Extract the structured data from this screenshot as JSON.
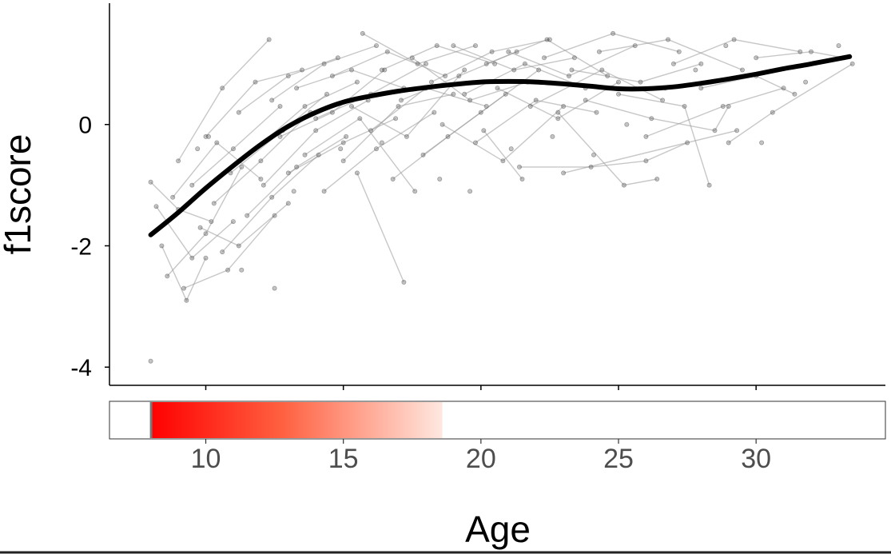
{
  "chart_data": {
    "type": "scatter",
    "xlabel": "Age",
    "ylabel": "f1score",
    "xlim": [
      6.5,
      34.7
    ],
    "ylim": [
      -4.3,
      2.0
    ],
    "x_ticks": [
      10,
      15,
      20,
      25,
      30
    ],
    "x_tick_labels": [
      "10",
      "15",
      "20",
      "25",
      "30"
    ],
    "y_ticks": [
      0,
      -2,
      -4
    ],
    "y_tick_labels": [
      "0",
      "-2",
      "-4"
    ],
    "grid": false,
    "smooth_line": {
      "x": [
        8.0,
        9.0,
        10.0,
        11.0,
        12.0,
        13.0,
        14.0,
        15.0,
        16.0,
        17.0,
        18.0,
        19.0,
        20.0,
        21.0,
        22.0,
        23.0,
        24.0,
        25.0,
        26.0,
        27.0,
        28.0,
        29.0,
        30.0,
        31.0,
        32.0,
        33.4
      ],
      "y": [
        -1.82,
        -1.45,
        -1.05,
        -0.68,
        -0.33,
        -0.03,
        0.2,
        0.37,
        0.47,
        0.55,
        0.61,
        0.66,
        0.7,
        0.71,
        0.7,
        0.67,
        0.63,
        0.59,
        0.59,
        0.62,
        0.68,
        0.75,
        0.83,
        0.92,
        1.0,
        1.12
      ]
    },
    "trajectories": [
      [
        [
          8.0,
          -0.95
        ],
        [
          9.0,
          -1.4
        ],
        [
          10.2,
          -1.6
        ]
      ],
      [
        [
          8.2,
          -1.35
        ],
        [
          9.5,
          -2.2
        ],
        [
          11.0,
          -1.6
        ]
      ],
      [
        [
          8.4,
          -2.0
        ],
        [
          9.3,
          -2.9
        ],
        [
          10.0,
          -2.2
        ]
      ],
      [
        [
          8.6,
          -2.5
        ],
        [
          10.0,
          -1.8
        ],
        [
          11.3,
          -0.7
        ]
      ],
      [
        [
          8.8,
          -1.2
        ],
        [
          10.4,
          -0.3
        ],
        [
          12.0,
          -0.9
        ]
      ],
      [
        [
          9.0,
          -0.6
        ],
        [
          10.6,
          0.6
        ],
        [
          12.3,
          1.4
        ]
      ],
      [
        [
          9.2,
          -2.7
        ],
        [
          10.8,
          -2.4
        ],
        [
          12.5,
          -1.5
        ]
      ],
      [
        [
          9.5,
          -1.0
        ],
        [
          11.0,
          -0.4
        ],
        [
          12.7,
          0.3
        ]
      ],
      [
        [
          9.8,
          -1.7
        ],
        [
          11.2,
          -2.0
        ],
        [
          13.0,
          -1.3
        ]
      ],
      [
        [
          10.0,
          -0.2
        ],
        [
          11.8,
          0.7
        ],
        [
          13.5,
          0.9
        ]
      ],
      [
        [
          10.3,
          -1.3
        ],
        [
          12.0,
          -0.6
        ],
        [
          13.8,
          0.2
        ]
      ],
      [
        [
          10.6,
          -2.1
        ],
        [
          12.4,
          -1.2
        ],
        [
          14.1,
          -0.5
        ]
      ],
      [
        [
          10.9,
          -0.8
        ],
        [
          12.8,
          -0.1
        ],
        [
          14.4,
          0.5
        ]
      ],
      [
        [
          11.2,
          0.2
        ],
        [
          13.0,
          0.8
        ],
        [
          14.8,
          1.1
        ]
      ],
      [
        [
          11.5,
          -1.5
        ],
        [
          13.3,
          -0.7
        ],
        [
          15.1,
          -0.2
        ]
      ],
      [
        [
          11.8,
          -0.4
        ],
        [
          13.6,
          0.3
        ],
        [
          15.5,
          0.7
        ]
      ],
      [
        [
          12.1,
          -1.0
        ],
        [
          14.0,
          -0.1
        ],
        [
          15.9,
          0.4
        ]
      ],
      [
        [
          12.4,
          0.4
        ],
        [
          14.3,
          1.0
        ],
        [
          16.2,
          1.3
        ]
      ],
      [
        [
          12.7,
          -0.2
        ],
        [
          14.6,
          0.2
        ],
        [
          16.5,
          0.9
        ]
      ],
      [
        [
          13.0,
          -0.8
        ],
        [
          15.0,
          -0.3
        ],
        [
          16.9,
          0.1
        ]
      ],
      [
        [
          13.3,
          0.6
        ],
        [
          15.3,
          0.9
        ],
        [
          17.2,
          0.6
        ]
      ],
      [
        [
          13.6,
          -0.5
        ],
        [
          15.6,
          0.1
        ],
        [
          17.6,
          -1.1
        ]
      ],
      [
        [
          14.0,
          0.1
        ],
        [
          16.0,
          0.5
        ],
        [
          18.0,
          1.0
        ]
      ],
      [
        [
          14.3,
          -1.1
        ],
        [
          16.2,
          -0.4
        ],
        [
          18.3,
          0.2
        ]
      ],
      [
        [
          14.6,
          0.8
        ],
        [
          16.6,
          1.2
        ],
        [
          18.7,
          0.8
        ]
      ],
      [
        [
          15.0,
          -0.6
        ],
        [
          17.0,
          0.3
        ],
        [
          19.0,
          0.5
        ]
      ],
      [
        [
          15.3,
          0.3
        ],
        [
          17.3,
          -0.2
        ],
        [
          19.4,
          0.9
        ]
      ],
      [
        [
          15.7,
          1.5
        ],
        [
          17.7,
          1.0
        ],
        [
          19.8,
          1.3
        ]
      ],
      [
        [
          16.0,
          -0.1
        ],
        [
          18.0,
          0.6
        ],
        [
          20.2,
          0.3
        ]
      ],
      [
        [
          16.4,
          0.9
        ],
        [
          18.4,
          1.3
        ],
        [
          20.5,
          1.0
        ]
      ],
      [
        [
          16.8,
          -0.9
        ],
        [
          18.8,
          -0.2
        ],
        [
          20.9,
          0.5
        ]
      ],
      [
        [
          17.1,
          0.4
        ],
        [
          19.2,
          0.8
        ],
        [
          21.3,
          1.2
        ]
      ],
      [
        [
          17.5,
          1.1
        ],
        [
          19.6,
          0.4
        ],
        [
          21.7,
          0.7
        ]
      ],
      [
        [
          17.9,
          -0.5
        ],
        [
          20.0,
          0.2
        ],
        [
          22.1,
          0.9
        ]
      ],
      [
        [
          18.2,
          0.7
        ],
        [
          20.4,
          1.2
        ],
        [
          22.5,
          1.4
        ]
      ],
      [
        [
          18.6,
          0.0
        ],
        [
          20.8,
          -0.6
        ],
        [
          23.0,
          0.3
        ]
      ],
      [
        [
          19.0,
          1.3
        ],
        [
          21.2,
          0.9
        ],
        [
          23.4,
          1.1
        ]
      ],
      [
        [
          19.4,
          0.5
        ],
        [
          21.6,
          1.0
        ],
        [
          23.8,
          0.6
        ]
      ],
      [
        [
          19.8,
          -0.3
        ],
        [
          22.0,
          0.4
        ],
        [
          24.2,
          0.2
        ]
      ],
      [
        [
          20.2,
          1.0
        ],
        [
          22.4,
          1.4
        ],
        [
          24.6,
          0.8
        ]
      ],
      [
        [
          20.6,
          0.6
        ],
        [
          22.8,
          0.1
        ],
        [
          25.0,
          0.7
        ]
      ],
      [
        [
          21.0,
          1.2
        ],
        [
          23.2,
          0.8
        ],
        [
          25.6,
          1.3
        ]
      ],
      [
        [
          21.4,
          -0.7
        ],
        [
          24.0,
          -0.7
        ],
        [
          26.0,
          -0.6
        ],
        [
          27.5,
          -0.3
        ]
      ],
      [
        [
          21.8,
          0.3
        ],
        [
          24.4,
          0.9
        ],
        [
          26.6,
          0.4
        ]
      ],
      [
        [
          22.3,
          1.1
        ],
        [
          24.8,
          1.5
        ],
        [
          27.2,
          1.2
        ]
      ],
      [
        [
          22.8,
          0.2
        ],
        [
          25.2,
          -1.0
        ],
        [
          26.4,
          -0.9
        ]
      ],
      [
        [
          23.3,
          0.9
        ],
        [
          25.8,
          0.7
        ],
        [
          28.0,
          1.0
        ]
      ],
      [
        [
          23.8,
          0.4
        ],
        [
          26.2,
          0.1
        ],
        [
          28.5,
          -0.1
        ],
        [
          29.0,
          0.3
        ]
      ],
      [
        [
          24.3,
          1.2
        ],
        [
          26.8,
          1.4
        ],
        [
          29.5,
          0.9
        ]
      ],
      [
        [
          25.0,
          0.5
        ],
        [
          27.4,
          0.3
        ],
        [
          28.3,
          -1.0
        ]
      ],
      [
        [
          26.0,
          -0.2
        ],
        [
          28.8,
          0.3
        ],
        [
          31.0,
          0.6
        ]
      ],
      [
        [
          27.0,
          1.0
        ],
        [
          29.2,
          1.4
        ],
        [
          31.6,
          1.2
        ]
      ],
      [
        [
          28.0,
          0.6
        ],
        [
          30.0,
          0.8
        ],
        [
          31.4,
          0.5
        ]
      ],
      [
        [
          29.0,
          -0.3
        ],
        [
          30.6,
          0.2
        ],
        [
          33.5,
          1.0
        ]
      ],
      [
        [
          30.0,
          1.1
        ],
        [
          32.0,
          1.2
        ],
        [
          33.2,
          1.1
        ]
      ],
      [
        [
          23.0,
          -0.8
        ],
        [
          29.3,
          -0.1
        ]
      ],
      [
        [
          15.5,
          -0.8
        ],
        [
          17.2,
          -2.6
        ]
      ],
      [
        [
          20.1,
          -0.1
        ],
        [
          21.5,
          -0.9
        ]
      ]
    ],
    "points": [
      [
        8.0,
        -3.9
      ],
      [
        11.3,
        -2.4
      ],
      [
        12.5,
        -2.7
      ],
      [
        9.7,
        -0.4
      ],
      [
        10.1,
        -0.2
      ],
      [
        13.2,
        -1.1
      ],
      [
        14.9,
        -0.4
      ],
      [
        16.4,
        -0.3
      ],
      [
        18.5,
        -0.9
      ],
      [
        19.6,
        -1.1
      ],
      [
        21.1,
        -0.4
      ],
      [
        22.6,
        -0.2
      ],
      [
        24.1,
        -0.5
      ],
      [
        25.3,
        0.0
      ],
      [
        26.7,
        0.6
      ],
      [
        27.8,
        0.9
      ],
      [
        28.9,
        1.3
      ],
      [
        30.2,
        -0.3
      ],
      [
        31.8,
        0.7
      ],
      [
        33.0,
        1.3
      ]
    ],
    "colorbar": {
      "gradient_start_color": "#ff0000",
      "gradient_end_color": "#ffe8e0",
      "background": "#ffffff",
      "range": [
        8.0,
        18.6
      ]
    },
    "point_color": "#555555",
    "line_color": "#000000",
    "trajectory_color": "#999999"
  }
}
